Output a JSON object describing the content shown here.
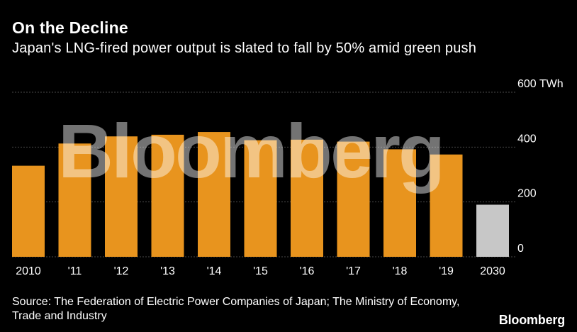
{
  "header": {
    "title": "On the Decline",
    "subtitle": "Japan's LNG-fired power output is slated to fall by 50% amid green push"
  },
  "footer": {
    "source": "Source: The Federation of Electric Power Companies of Japan; The Ministry of Economy, Trade and Industry",
    "brand": "Bloomberg"
  },
  "watermark": "Bloomberg",
  "colors": {
    "background": "#000000",
    "bar": "#E8941E",
    "projection": "#C7C7C7",
    "grid": "#4A4A4A",
    "text": "#FFFFFF"
  },
  "chart_data": {
    "type": "bar",
    "title": "On the Decline",
    "subtitle": "Japan's LNG-fired power output is slated to fall by 50% amid green push",
    "categories": [
      "2010",
      "'11",
      "'12",
      "'13",
      "'14",
      "'15",
      "'16",
      "'17",
      "'18",
      "'19",
      "2030"
    ],
    "values": [
      332,
      413,
      439,
      445,
      455,
      425,
      427,
      420,
      392,
      373,
      190
    ],
    "projected": [
      false,
      false,
      false,
      false,
      false,
      false,
      false,
      false,
      false,
      false,
      true
    ],
    "ylim": [
      0,
      600
    ],
    "yticks": [
      0,
      200,
      400,
      600
    ],
    "ytick_labels": [
      "0",
      "200",
      "400",
      "600 TWh"
    ],
    "yaxis_position": "right",
    "xlabel": "",
    "ylabel": "TWh",
    "grid": true
  }
}
